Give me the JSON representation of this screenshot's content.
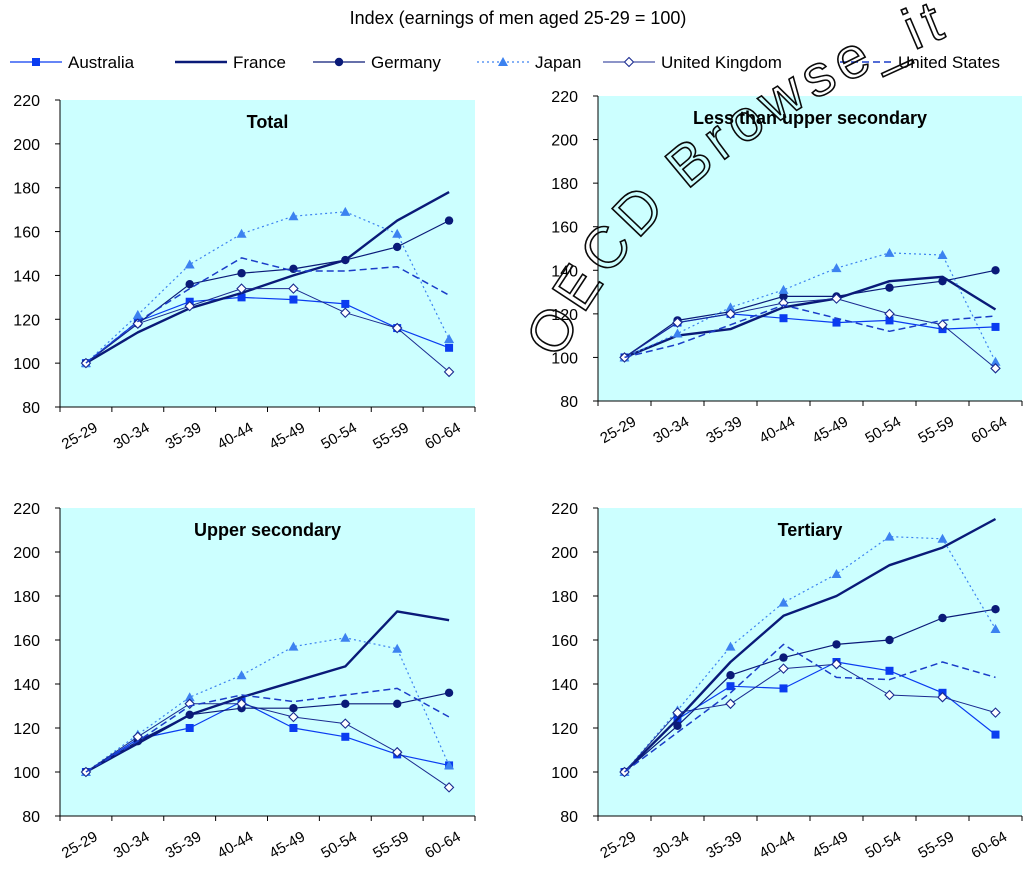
{
  "subtitle": "Index (earnings of men aged 25-29 = 100)",
  "legend": [
    {
      "name": "Australia",
      "style": "square"
    },
    {
      "name": "France",
      "style": "solid"
    },
    {
      "name": "Germany",
      "style": "circle"
    },
    {
      "name": "Japan",
      "style": "triangle-dotted"
    },
    {
      "name": "United Kingdom",
      "style": "diamond"
    },
    {
      "name": "United States",
      "style": "dashed"
    }
  ],
  "watermark_text": "OECD Browse_it Edition • Lecture",
  "colors": {
    "panel_bg": "#ccffff",
    "australia": "#0a3cf0",
    "france": "#0a1a78",
    "germany": "#0a1a78",
    "japan": "#3c82f0",
    "united_kingdom": "#1a2a90",
    "united_states": "#1a3cc8",
    "watermark": "#0a0a0a"
  },
  "chart_data": [
    {
      "type": "line",
      "title": "Total",
      "categories": [
        "25-29",
        "30-34",
        "35-39",
        "40-44",
        "45-49",
        "50-54",
        "55-59",
        "60-64"
      ],
      "ylim": [
        80,
        220
      ],
      "yticks": [
        80,
        100,
        120,
        140,
        160,
        180,
        200,
        220
      ],
      "series": [
        {
          "name": "Australia",
          "values": [
            100,
            119,
            128,
            130,
            129,
            127,
            116,
            107
          ]
        },
        {
          "name": "France",
          "values": [
            100,
            114,
            125,
            132,
            140,
            147,
            165,
            178
          ]
        },
        {
          "name": "Germany",
          "values": [
            100,
            118,
            136,
            141,
            143,
            147,
            153,
            165
          ]
        },
        {
          "name": "Japan",
          "values": [
            100,
            122,
            145,
            159,
            167,
            169,
            159,
            111
          ]
        },
        {
          "name": "United Kingdom",
          "values": [
            100,
            118,
            126,
            134,
            134,
            123,
            116,
            96
          ]
        },
        {
          "name": "United States",
          "values": [
            100,
            119,
            134,
            148,
            142,
            142,
            144,
            131
          ]
        }
      ]
    },
    {
      "type": "line",
      "title": "Less than upper secondary",
      "categories": [
        "25-29",
        "30-34",
        "35-39",
        "40-44",
        "45-49",
        "50-54",
        "55-59",
        "60-64"
      ],
      "ylim": [
        80,
        220
      ],
      "yticks": [
        80,
        100,
        120,
        140,
        160,
        180,
        200,
        220
      ],
      "series": [
        {
          "name": "Australia",
          "values": [
            100,
            116,
            120,
            118,
            116,
            117,
            113,
            114
          ]
        },
        {
          "name": "France",
          "values": [
            100,
            110,
            113,
            123,
            127,
            135,
            137,
            122
          ]
        },
        {
          "name": "Germany",
          "values": [
            100,
            117,
            121,
            128,
            128,
            132,
            135,
            140
          ]
        },
        {
          "name": "Japan",
          "values": [
            100,
            111,
            123,
            131,
            141,
            148,
            147,
            98
          ]
        },
        {
          "name": "United Kingdom",
          "values": [
            100,
            116,
            120,
            125,
            127,
            120,
            115,
            95
          ]
        },
        {
          "name": "United States",
          "values": [
            100,
            106,
            115,
            124,
            118,
            112,
            117,
            119
          ]
        }
      ]
    },
    {
      "type": "line",
      "title": "Upper secondary",
      "categories": [
        "25-29",
        "30-34",
        "35-39",
        "40-44",
        "45-49",
        "50-54",
        "55-59",
        "60-64"
      ],
      "ylim": [
        80,
        220
      ],
      "yticks": [
        80,
        100,
        120,
        140,
        160,
        180,
        200,
        220
      ],
      "series": [
        {
          "name": "Australia",
          "values": [
            100,
            115,
            120,
            132,
            120,
            116,
            108,
            103
          ]
        },
        {
          "name": "France",
          "values": [
            100,
            113,
            126,
            134,
            141,
            148,
            173,
            169
          ]
        },
        {
          "name": "Germany",
          "values": [
            100,
            114,
            126,
            129,
            129,
            131,
            131,
            136
          ]
        },
        {
          "name": "Japan",
          "values": [
            100,
            117,
            134,
            144,
            157,
            161,
            156,
            103
          ]
        },
        {
          "name": "United Kingdom",
          "values": [
            100,
            116,
            131,
            131,
            125,
            122,
            109,
            93
          ]
        },
        {
          "name": "United States",
          "values": [
            100,
            114,
            130,
            135,
            132,
            135,
            138,
            125
          ]
        }
      ]
    },
    {
      "type": "line",
      "title": "Tertiary",
      "categories": [
        "25-29",
        "30-34",
        "35-39",
        "40-44",
        "45-49",
        "50-54",
        "55-59",
        "60-64"
      ],
      "ylim": [
        80,
        220
      ],
      "yticks": [
        80,
        100,
        120,
        140,
        160,
        180,
        200,
        220
      ],
      "series": [
        {
          "name": "Australia",
          "values": [
            100,
            124,
            139,
            138,
            150,
            146,
            136,
            117
          ]
        },
        {
          "name": "France",
          "values": [
            100,
            124,
            150,
            171,
            180,
            194,
            202,
            215
          ]
        },
        {
          "name": "Germany",
          "values": [
            100,
            121,
            144,
            152,
            158,
            160,
            170,
            174
          ]
        },
        {
          "name": "Japan",
          "values": [
            100,
            128,
            157,
            177,
            190,
            207,
            206,
            165
          ]
        },
        {
          "name": "United Kingdom",
          "values": [
            100,
            127,
            131,
            147,
            149,
            135,
            134,
            127
          ]
        },
        {
          "name": "United States",
          "values": [
            100,
            118,
            136,
            158,
            143,
            142,
            150,
            143
          ]
        }
      ]
    }
  ]
}
